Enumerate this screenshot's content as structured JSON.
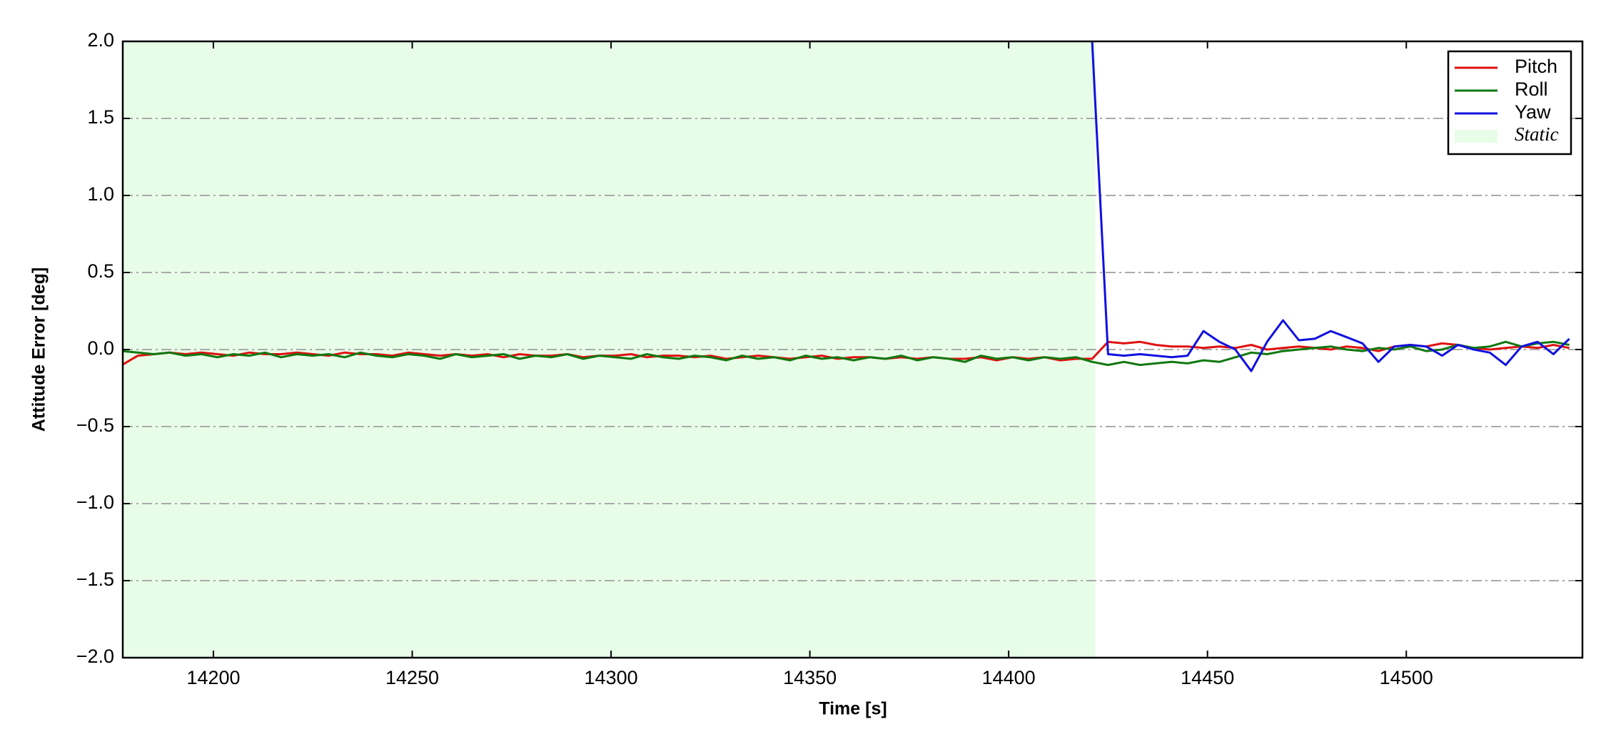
{
  "chart_data": {
    "type": "line",
    "xlabel": "Time [s]",
    "ylabel": "Attitude Error [deg]",
    "xlim": [
      14177.2,
      14544.3
    ],
    "ylim": [
      -2,
      2
    ],
    "xticks": [
      14200,
      14250,
      14300,
      14350,
      14400,
      14450,
      14500
    ],
    "yticks": [
      {
        "value": -2,
        "label": "−2.0"
      },
      {
        "value": -1.5,
        "label": "−1.5"
      },
      {
        "value": -1,
        "label": "−1.0"
      },
      {
        "value": -0.5,
        "label": "−0.5"
      },
      {
        "value": 0,
        "label": "0.0"
      },
      {
        "value": 0.5,
        "label": "0.5"
      },
      {
        "value": 1,
        "label": "1.0"
      },
      {
        "value": 1.5,
        "label": "1.5"
      },
      {
        "value": 2,
        "label": "2.0"
      }
    ],
    "grid": true,
    "legend": "upper right",
    "shade": {
      "name": "Static",
      "color": "#e8fde8",
      "x": [
        14177.2,
        14421.8
      ]
    },
    "x": [
      14177,
      14181,
      14185,
      14189,
      14193,
      14197,
      14201,
      14205,
      14209,
      14213,
      14217,
      14221,
      14225,
      14229,
      14233,
      14237,
      14241,
      14245,
      14249,
      14253,
      14257,
      14261,
      14265,
      14269,
      14273,
      14277,
      14281,
      14285,
      14289,
      14293,
      14297,
      14301,
      14305,
      14309,
      14313,
      14317,
      14321,
      14325,
      14329,
      14333,
      14337,
      14341,
      14345,
      14349,
      14353,
      14357,
      14361,
      14365,
      14369,
      14373,
      14377,
      14381,
      14385,
      14389,
      14393,
      14397,
      14401,
      14405,
      14409,
      14413,
      14417,
      14421,
      14425,
      14429,
      14433,
      14437,
      14441,
      14445,
      14449,
      14453,
      14457,
      14461,
      14465,
      14469,
      14473,
      14477,
      14481,
      14485,
      14489,
      14493,
      14497,
      14501,
      14505,
      14509,
      14513,
      14517,
      14521,
      14525,
      14529,
      14533,
      14537,
      14541
    ],
    "series": [
      {
        "name": "Pitch",
        "color": "#e01010",
        "values": [
          -0.1,
          -0.04,
          -0.03,
          -0.02,
          -0.03,
          -0.02,
          -0.03,
          -0.04,
          -0.02,
          -0.03,
          -0.03,
          -0.02,
          -0.03,
          -0.04,
          -0.02,
          -0.03,
          -0.03,
          -0.04,
          -0.02,
          -0.03,
          -0.04,
          -0.03,
          -0.04,
          -0.03,
          -0.05,
          -0.03,
          -0.04,
          -0.04,
          -0.03,
          -0.05,
          -0.04,
          -0.04,
          -0.03,
          -0.05,
          -0.04,
          -0.04,
          -0.05,
          -0.04,
          -0.06,
          -0.05,
          -0.04,
          -0.05,
          -0.06,
          -0.05,
          -0.04,
          -0.06,
          -0.05,
          -0.05,
          -0.06,
          -0.05,
          -0.06,
          -0.05,
          -0.06,
          -0.06,
          -0.05,
          -0.07,
          -0.05,
          -0.06,
          -0.05,
          -0.07,
          -0.06,
          -0.06,
          0.05,
          0.04,
          0.05,
          0.03,
          0.02,
          0.02,
          0.01,
          0.02,
          0.01,
          0.03,
          0.0,
          0.01,
          0.02,
          0.01,
          0.0,
          0.02,
          0.01,
          -0.01,
          0.02,
          0.03,
          0.02,
          0.04,
          0.03,
          0.01,
          0.0,
          0.01,
          0.02,
          0.01,
          0.03,
          0.01
        ]
      },
      {
        "name": "Roll",
        "color": "#107810",
        "values": [
          -0.01,
          -0.02,
          -0.03,
          -0.02,
          -0.04,
          -0.03,
          -0.05,
          -0.03,
          -0.04,
          -0.02,
          -0.05,
          -0.03,
          -0.04,
          -0.03,
          -0.05,
          -0.02,
          -0.04,
          -0.05,
          -0.03,
          -0.04,
          -0.06,
          -0.03,
          -0.05,
          -0.04,
          -0.03,
          -0.06,
          -0.04,
          -0.05,
          -0.03,
          -0.06,
          -0.04,
          -0.05,
          -0.06,
          -0.03,
          -0.05,
          -0.06,
          -0.04,
          -0.05,
          -0.07,
          -0.04,
          -0.06,
          -0.05,
          -0.07,
          -0.04,
          -0.06,
          -0.05,
          -0.07,
          -0.05,
          -0.06,
          -0.04,
          -0.07,
          -0.05,
          -0.06,
          -0.08,
          -0.04,
          -0.06,
          -0.05,
          -0.07,
          -0.05,
          -0.06,
          -0.05,
          -0.08,
          -0.1,
          -0.08,
          -0.1,
          -0.09,
          -0.08,
          -0.09,
          -0.07,
          -0.08,
          -0.05,
          -0.02,
          -0.03,
          -0.01,
          0.0,
          0.01,
          0.02,
          0.0,
          -0.01,
          0.01,
          0.0,
          0.02,
          -0.01,
          0.0,
          0.03,
          0.01,
          0.02,
          0.05,
          0.02,
          0.04,
          0.05,
          0.03
        ]
      },
      {
        "name": "Yaw",
        "color": "#1010e0",
        "values": [
          null,
          null,
          null,
          null,
          null,
          null,
          null,
          null,
          null,
          null,
          null,
          null,
          null,
          null,
          null,
          null,
          null,
          null,
          null,
          null,
          null,
          null,
          null,
          null,
          null,
          null,
          null,
          null,
          null,
          null,
          null,
          null,
          null,
          null,
          null,
          null,
          null,
          null,
          null,
          null,
          null,
          null,
          null,
          null,
          null,
          null,
          null,
          null,
          null,
          null,
          null,
          null,
          null,
          null,
          null,
          null,
          null,
          null,
          null,
          null,
          null,
          2.0,
          -0.03,
          -0.04,
          -0.03,
          -0.04,
          -0.05,
          -0.04,
          0.12,
          0.05,
          0.0,
          -0.14,
          0.05,
          0.19,
          0.06,
          0.07,
          0.12,
          0.08,
          0.04,
          -0.08,
          0.02,
          0.03,
          0.02,
          -0.04,
          0.03,
          0.0,
          -0.02,
          -0.1,
          0.02,
          0.05,
          -0.03,
          0.07
        ]
      }
    ]
  }
}
